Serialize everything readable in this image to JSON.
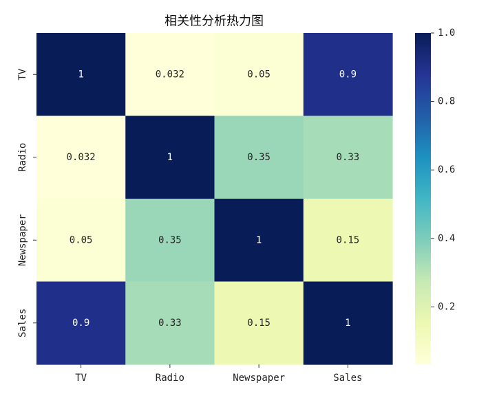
{
  "chart_data": {
    "type": "heatmap",
    "title": "相关性分析热力图",
    "x_categories": [
      "TV",
      "Radio",
      "Newspaper",
      "Sales"
    ],
    "y_categories": [
      "TV",
      "Radio",
      "Newspaper",
      "Sales"
    ],
    "values": [
      [
        1,
        0.032,
        0.05,
        0.9
      ],
      [
        0.032,
        1,
        0.35,
        0.33
      ],
      [
        0.05,
        0.35,
        1,
        0.15
      ],
      [
        0.9,
        0.33,
        0.15,
        1
      ]
    ],
    "annotations": [
      [
        "1",
        "0.032",
        "0.05",
        "0.9"
      ],
      [
        "0.032",
        "1",
        "0.35",
        "0.33"
      ],
      [
        "0.05",
        "0.35",
        "1",
        "0.15"
      ],
      [
        "0.9",
        "0.33",
        "0.15",
        "1"
      ]
    ],
    "colorbar": {
      "placement": "right",
      "range": [
        0.032,
        1.0
      ],
      "ticks": [
        0.2,
        0.4,
        0.6,
        0.8,
        1.0
      ],
      "tick_labels": [
        "0.2",
        "0.4",
        "0.6",
        "0.8",
        "1.0"
      ]
    },
    "colormap": [
      "#ffffd9",
      "#edf8b1",
      "#c7e9b4",
      "#7fcdbb",
      "#41b6c4",
      "#1d91c0",
      "#225ea8",
      "#253494",
      "#081d58"
    ],
    "annotation_colors": {
      "light_text": "#ffffff",
      "dark_text": "#262626"
    },
    "grid": false
  }
}
